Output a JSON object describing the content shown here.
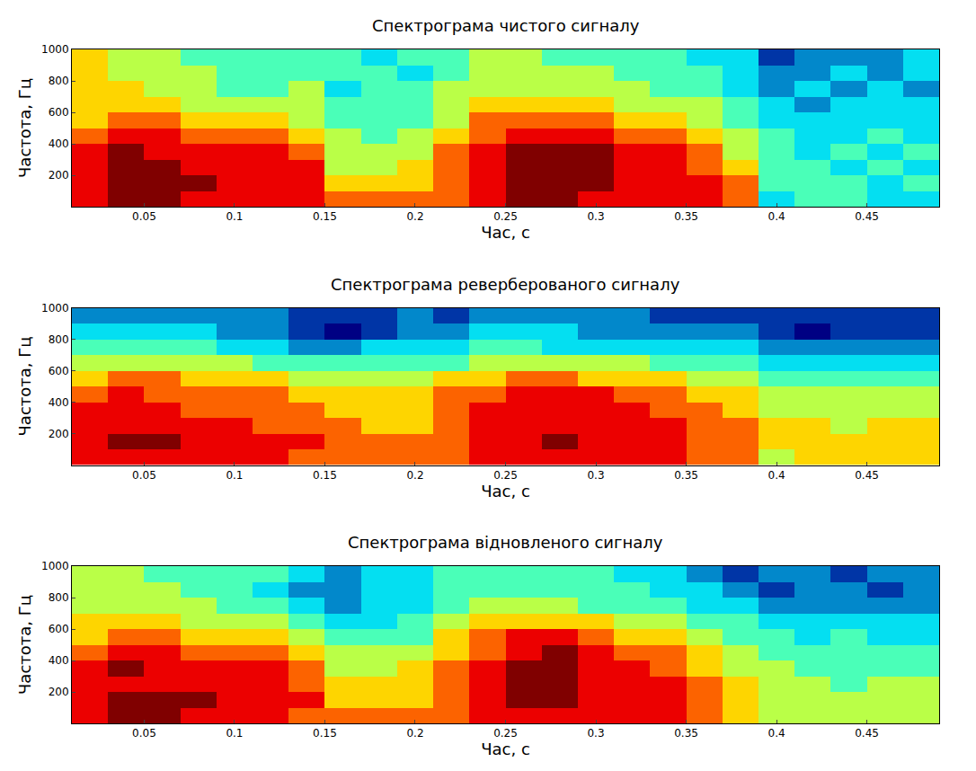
{
  "chart_data": [
    {
      "type": "heatmap",
      "title": "Спектрограма чистого сигналу",
      "x_label": "Час, с",
      "y_label": "Частота, Гц",
      "x": [
        0.02,
        0.04,
        0.06,
        0.08,
        0.1,
        0.12,
        0.14,
        0.16,
        0.18,
        0.2,
        0.22,
        0.24,
        0.26,
        0.28,
        0.3,
        0.32,
        0.34,
        0.36,
        0.38,
        0.4,
        0.42,
        0.44,
        0.46,
        0.48
      ],
      "y": [
        50,
        150,
        250,
        350,
        450,
        550,
        650,
        750,
        850,
        950
      ],
      "z": [
        [
          9,
          10,
          10,
          9,
          9,
          9,
          9,
          8,
          8,
          8,
          8,
          9,
          10,
          10,
          9,
          9,
          9,
          9,
          8,
          4,
          5,
          5,
          4,
          4
        ],
        [
          9,
          10,
          10,
          10,
          9,
          9,
          9,
          7,
          7,
          7,
          8,
          9,
          10,
          10,
          10,
          9,
          9,
          9,
          8,
          5,
          5,
          5,
          4,
          5
        ],
        [
          9,
          10,
          10,
          9,
          9,
          9,
          9,
          6,
          6,
          7,
          8,
          9,
          10,
          10,
          10,
          9,
          9,
          8,
          7,
          5,
          5,
          4,
          5,
          4
        ],
        [
          9,
          10,
          9,
          9,
          9,
          9,
          8,
          6,
          6,
          6,
          8,
          9,
          10,
          10,
          10,
          9,
          9,
          8,
          6,
          5,
          4,
          5,
          4,
          5
        ],
        [
          8,
          9,
          9,
          8,
          8,
          8,
          7,
          6,
          5,
          6,
          7,
          8,
          9,
          9,
          9,
          8,
          8,
          7,
          6,
          5,
          4,
          4,
          5,
          4
        ],
        [
          7,
          8,
          8,
          7,
          7,
          7,
          6,
          5,
          5,
          5,
          6,
          8,
          8,
          8,
          8,
          7,
          7,
          6,
          5,
          4,
          4,
          4,
          4,
          4
        ],
        [
          7,
          7,
          7,
          6,
          6,
          6,
          6,
          5,
          5,
          5,
          6,
          7,
          7,
          7,
          7,
          6,
          6,
          6,
          5,
          4,
          3,
          4,
          4,
          4
        ],
        [
          7,
          7,
          6,
          6,
          5,
          5,
          6,
          4,
          5,
          5,
          6,
          6,
          6,
          6,
          6,
          6,
          5,
          5,
          4,
          3,
          4,
          3,
          4,
          3
        ],
        [
          7,
          6,
          6,
          6,
          5,
          5,
          5,
          5,
          5,
          4,
          5,
          6,
          6,
          6,
          6,
          5,
          5,
          5,
          4,
          3,
          3,
          4,
          3,
          4
        ],
        [
          7,
          6,
          6,
          5,
          5,
          5,
          5,
          5,
          4,
          5,
          5,
          6,
          6,
          5,
          5,
          5,
          5,
          4,
          4,
          2,
          3,
          3,
          3,
          4
        ]
      ],
      "xlim": [
        0.01,
        0.49
      ],
      "ylim": [
        0,
        1000
      ],
      "xticks": [
        0.05,
        0.1,
        0.15,
        0.2,
        0.25,
        0.3,
        0.35,
        0.4,
        0.45
      ],
      "yticks": [
        200,
        400,
        600,
        800,
        1000
      ],
      "grid": true
    },
    {
      "type": "heatmap",
      "title": "Спектрограма реверберованого сигналу",
      "x_label": "Час, с",
      "y_label": "Частота, Гц",
      "x": [
        0.02,
        0.04,
        0.06,
        0.08,
        0.1,
        0.12,
        0.14,
        0.16,
        0.18,
        0.2,
        0.22,
        0.24,
        0.26,
        0.28,
        0.3,
        0.32,
        0.34,
        0.36,
        0.38,
        0.4,
        0.42,
        0.44,
        0.46,
        0.48
      ],
      "y": [
        50,
        150,
        250,
        350,
        450,
        550,
        650,
        750,
        850,
        950
      ],
      "z": [
        [
          9,
          9,
          9,
          9,
          9,
          9,
          8,
          8,
          8,
          8,
          8,
          9,
          9,
          9,
          9,
          9,
          9,
          8,
          8,
          6,
          7,
          7,
          7,
          7
        ],
        [
          9,
          10,
          10,
          9,
          9,
          9,
          9,
          8,
          8,
          8,
          8,
          9,
          9,
          10,
          9,
          9,
          9,
          8,
          8,
          7,
          7,
          7,
          7,
          7
        ],
        [
          9,
          9,
          9,
          9,
          9,
          8,
          8,
          8,
          7,
          7,
          8,
          9,
          9,
          9,
          9,
          9,
          9,
          8,
          8,
          7,
          7,
          6,
          7,
          7
        ],
        [
          9,
          9,
          9,
          8,
          8,
          8,
          8,
          7,
          7,
          7,
          8,
          9,
          9,
          9,
          9,
          9,
          8,
          8,
          7,
          6,
          6,
          6,
          6,
          6
        ],
        [
          8,
          9,
          8,
          8,
          8,
          8,
          7,
          7,
          7,
          7,
          8,
          8,
          9,
          9,
          9,
          8,
          8,
          7,
          7,
          6,
          6,
          6,
          6,
          6
        ],
        [
          7,
          8,
          8,
          7,
          7,
          7,
          6,
          6,
          6,
          6,
          7,
          7,
          8,
          8,
          7,
          7,
          7,
          6,
          6,
          5,
          5,
          5,
          5,
          5
        ],
        [
          6,
          6,
          6,
          6,
          6,
          5,
          5,
          5,
          5,
          5,
          5,
          6,
          6,
          6,
          6,
          6,
          5,
          5,
          5,
          4,
          4,
          4,
          4,
          4
        ],
        [
          5,
          5,
          5,
          5,
          4,
          4,
          3,
          3,
          4,
          4,
          4,
          5,
          5,
          4,
          4,
          4,
          4,
          4,
          4,
          3,
          3,
          3,
          3,
          3
        ],
        [
          4,
          4,
          4,
          4,
          3,
          3,
          2,
          1,
          2,
          3,
          3,
          4,
          4,
          4,
          3,
          3,
          3,
          3,
          3,
          2,
          1,
          2,
          2,
          2
        ],
        [
          3,
          3,
          3,
          3,
          3,
          3,
          2,
          2,
          2,
          3,
          2,
          3,
          3,
          3,
          3,
          3,
          2,
          2,
          2,
          2,
          2,
          2,
          2,
          2
        ]
      ],
      "xlim": [
        0.01,
        0.49
      ],
      "ylim": [
        0,
        1000
      ],
      "xticks": [
        0.05,
        0.1,
        0.15,
        0.2,
        0.25,
        0.3,
        0.35,
        0.4,
        0.45
      ],
      "yticks": [
        200,
        400,
        600,
        800,
        1000
      ],
      "grid": true
    },
    {
      "type": "heatmap",
      "title": "Спектрограма відновленого сигналу",
      "x_label": "Час, с",
      "y_label": "Частота, Гц",
      "x": [
        0.02,
        0.04,
        0.06,
        0.08,
        0.1,
        0.12,
        0.14,
        0.16,
        0.18,
        0.2,
        0.22,
        0.24,
        0.26,
        0.28,
        0.3,
        0.32,
        0.34,
        0.36,
        0.38,
        0.4,
        0.42,
        0.44,
        0.46,
        0.48
      ],
      "y": [
        50,
        150,
        250,
        350,
        450,
        550,
        650,
        750,
        850,
        950
      ],
      "z": [
        [
          9,
          10,
          10,
          9,
          9,
          9,
          8,
          8,
          8,
          8,
          8,
          9,
          9,
          9,
          9,
          9,
          9,
          8,
          7,
          6,
          6,
          6,
          6,
          6
        ],
        [
          9,
          10,
          10,
          10,
          9,
          9,
          9,
          7,
          7,
          7,
          8,
          9,
          10,
          10,
          9,
          9,
          9,
          8,
          7,
          6,
          6,
          6,
          6,
          6
        ],
        [
          9,
          9,
          9,
          9,
          9,
          9,
          8,
          7,
          7,
          7,
          8,
          9,
          10,
          10,
          9,
          9,
          9,
          8,
          7,
          6,
          6,
          5,
          6,
          6
        ],
        [
          9,
          10,
          9,
          9,
          9,
          9,
          8,
          6,
          6,
          7,
          8,
          9,
          10,
          10,
          9,
          9,
          8,
          7,
          6,
          6,
          5,
          5,
          5,
          5
        ],
        [
          8,
          9,
          9,
          8,
          8,
          8,
          7,
          6,
          6,
          6,
          7,
          8,
          9,
          10,
          9,
          8,
          8,
          7,
          6,
          5,
          5,
          5,
          5,
          5
        ],
        [
          7,
          8,
          8,
          7,
          7,
          7,
          6,
          5,
          5,
          5,
          7,
          8,
          9,
          9,
          8,
          7,
          7,
          6,
          5,
          5,
          4,
          5,
          4,
          4
        ],
        [
          7,
          7,
          7,
          6,
          6,
          6,
          5,
          4,
          4,
          5,
          6,
          7,
          7,
          7,
          7,
          6,
          6,
          5,
          5,
          4,
          4,
          4,
          4,
          4
        ],
        [
          6,
          6,
          6,
          6,
          5,
          5,
          4,
          3,
          4,
          4,
          5,
          6,
          6,
          6,
          5,
          5,
          5,
          4,
          4,
          3,
          3,
          3,
          3,
          3
        ],
        [
          6,
          6,
          6,
          5,
          5,
          4,
          3,
          3,
          4,
          4,
          5,
          5,
          5,
          5,
          5,
          5,
          4,
          4,
          3,
          2,
          3,
          3,
          2,
          3
        ],
        [
          6,
          6,
          5,
          5,
          5,
          5,
          4,
          3,
          4,
          4,
          5,
          5,
          5,
          5,
          5,
          4,
          4,
          3,
          2,
          3,
          3,
          2,
          3,
          3
        ]
      ],
      "xlim": [
        0.01,
        0.49
      ],
      "ylim": [
        0,
        1000
      ],
      "xticks": [
        0.05,
        0.1,
        0.15,
        0.2,
        0.25,
        0.3,
        0.35,
        0.4,
        0.45
      ],
      "yticks": [
        200,
        400,
        600,
        800,
        1000
      ],
      "grid": true
    }
  ]
}
